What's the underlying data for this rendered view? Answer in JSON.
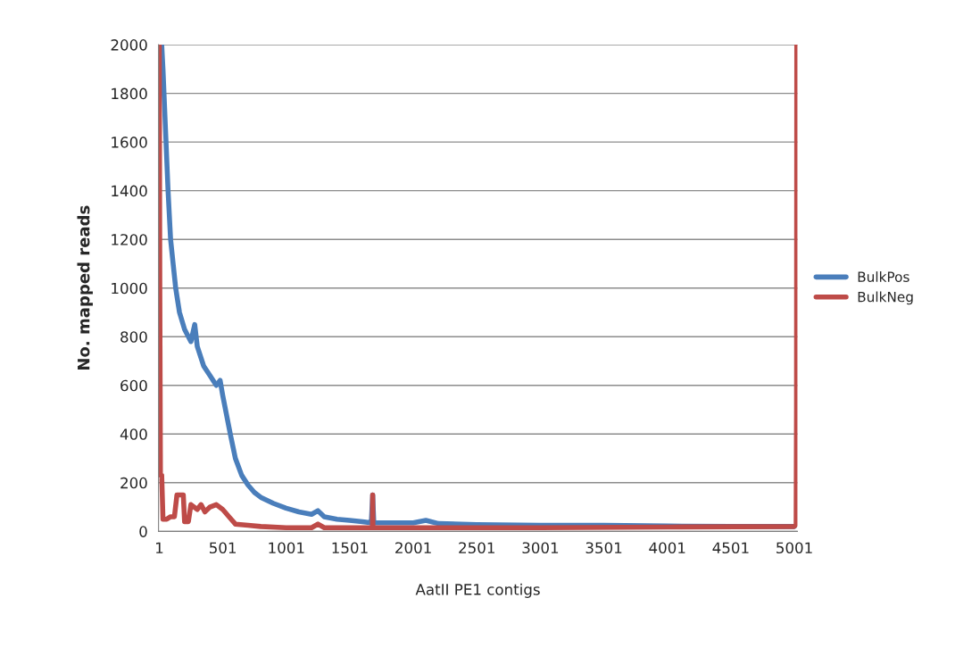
{
  "chart_data": {
    "type": "line",
    "xlabel": "AatII PE1 contigs",
    "ylabel": "No. mapped reads",
    "xlim": [
      -5,
      5025
    ],
    "xticks": [
      1,
      501,
      1001,
      1501,
      2001,
      2501,
      3001,
      3501,
      4001,
      4501,
      5001
    ],
    "ylim": [
      0,
      2000
    ],
    "yticks": [
      0,
      200,
      400,
      600,
      800,
      1000,
      1200,
      1400,
      1600,
      1800,
      2000
    ],
    "grid": "y",
    "legend": "right",
    "marker": "none",
    "line_style": "solid",
    "series": [
      {
        "name": "BulkPos",
        "color": "#4a7ebb",
        "x": [
          1,
          20,
          30,
          50,
          70,
          90,
          110,
          130,
          160,
          200,
          250,
          280,
          300,
          350,
          400,
          450,
          480,
          500,
          530,
          560,
          600,
          650,
          700,
          750,
          800,
          900,
          1000,
          1100,
          1200,
          1250,
          1300,
          1400,
          1500,
          1600,
          1670,
          1681,
          1690,
          1800,
          2000,
          2100,
          2200,
          2500,
          3000,
          3500,
          4000,
          4500,
          5000
        ],
        "values": [
          2000,
          2000,
          1900,
          1650,
          1400,
          1200,
          1100,
          1000,
          900,
          830,
          780,
          850,
          760,
          680,
          640,
          600,
          620,
          560,
          480,
          400,
          300,
          230,
          190,
          160,
          140,
          115,
          95,
          80,
          70,
          85,
          60,
          50,
          45,
          40,
          35,
          150,
          35,
          35,
          35,
          45,
          32,
          28,
          25,
          25,
          22,
          20,
          20
        ]
      },
      {
        "name": "BulkNeg",
        "color": "#be4b48",
        "x": [
          1,
          5,
          10,
          20,
          30,
          60,
          90,
          120,
          140,
          190,
          200,
          230,
          250,
          300,
          330,
          360,
          400,
          450,
          500,
          550,
          600,
          700,
          800,
          1000,
          1200,
          1250,
          1300,
          1679,
          1681,
          1683,
          2000,
          3000,
          4000,
          5000,
          5015,
          5018,
          5020
        ],
        "values": [
          2000,
          1000,
          230,
          230,
          50,
          50,
          60,
          60,
          150,
          150,
          40,
          40,
          110,
          90,
          110,
          80,
          100,
          110,
          90,
          60,
          30,
          25,
          20,
          15,
          15,
          30,
          15,
          15,
          150,
          15,
          15,
          15,
          18,
          20,
          30,
          500,
          2000
        ]
      }
    ]
  }
}
